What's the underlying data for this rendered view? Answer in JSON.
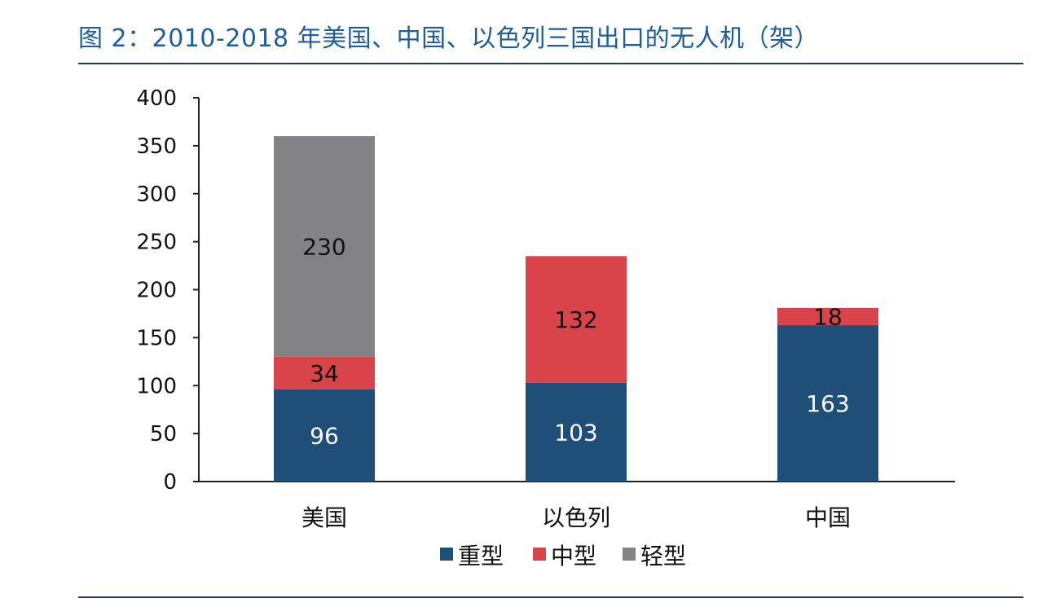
{
  "title": "图 2：2010-2018 年美国、中国、以色列三国出口的无人机（架）",
  "chart_data": {
    "type": "bar",
    "stacked": true,
    "categories": [
      "美国",
      "以色列",
      "中国"
    ],
    "series": [
      {
        "name": "重型",
        "values": [
          96,
          103,
          163
        ],
        "color": "#1f4e79"
      },
      {
        "name": "中型",
        "values": [
          34,
          132,
          18
        ],
        "color": "#d9434a"
      },
      {
        "name": "轻型",
        "values": [
          230,
          0,
          0
        ],
        "color": "#838387"
      }
    ],
    "ylim": [
      0,
      400
    ],
    "yticks": [
      0,
      50,
      100,
      150,
      200,
      250,
      300,
      350,
      400
    ],
    "grid": false,
    "legend": "bottom"
  }
}
